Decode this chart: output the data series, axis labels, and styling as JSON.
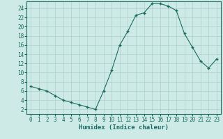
{
  "x": [
    0,
    1,
    2,
    3,
    4,
    5,
    6,
    7,
    8,
    9,
    10,
    11,
    12,
    13,
    14,
    15,
    16,
    17,
    18,
    19,
    20,
    21,
    22,
    23
  ],
  "y": [
    7,
    6.5,
    6,
    5,
    4,
    3.5,
    3,
    2.5,
    2,
    6,
    10.5,
    16,
    19,
    22.5,
    23,
    25,
    25,
    24.5,
    23.5,
    18.5,
    15.5,
    12.5,
    11,
    13
  ],
  "xlabel": "Humidex (Indice chaleur)",
  "xlim": [
    -0.5,
    23.5
  ],
  "ylim": [
    1,
    25.5
  ],
  "yticks": [
    2,
    4,
    6,
    8,
    10,
    12,
    14,
    16,
    18,
    20,
    22,
    24
  ],
  "xticks": [
    0,
    1,
    2,
    3,
    4,
    5,
    6,
    7,
    8,
    9,
    10,
    11,
    12,
    13,
    14,
    15,
    16,
    17,
    18,
    19,
    20,
    21,
    22,
    23
  ],
  "line_color": "#1a6b5e",
  "marker": "+",
  "marker_size": 3.5,
  "bg_color": "#ceeae6",
  "grid_color": "#aecfcc",
  "xlabel_fontsize": 6.5,
  "tick_fontsize": 5.5
}
